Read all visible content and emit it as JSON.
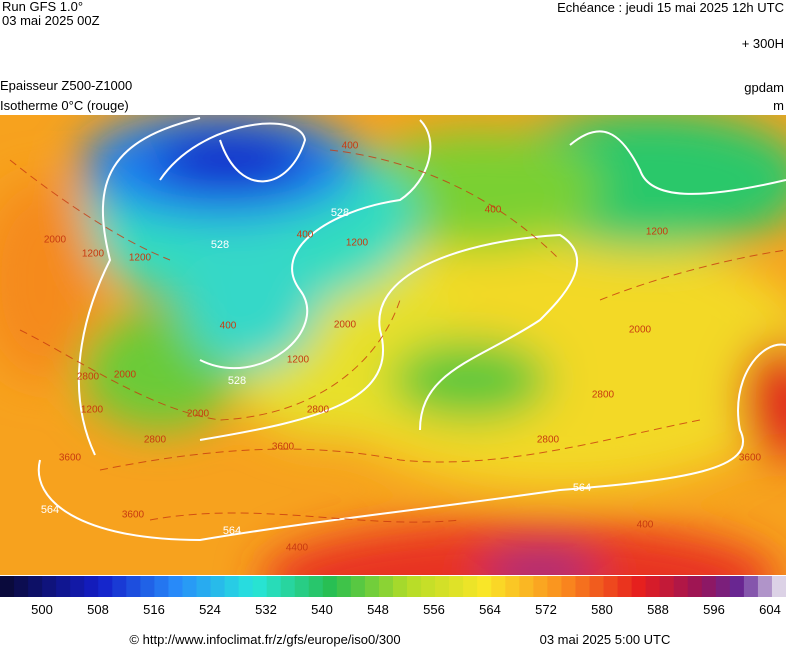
{
  "header": {
    "run": "Run GFS 1.0°",
    "run_date": "03 mai 2025 00Z",
    "valid": "Echéance : jeudi 15 mai 2025 12h UTC",
    "lead": "+ 300H",
    "title1": "Epaisseur Z500-Z1000",
    "title2": "Isotherme 0°C (rouge)",
    "unit1": "gpdam",
    "unit2": "m"
  },
  "contour_labels": {
    "thickness": [
      "528",
      "528",
      "528",
      "564",
      "564",
      "564"
    ],
    "iso0": [
      "400",
      "400",
      "400",
      "400",
      "400",
      "1200",
      "1200",
      "1200",
      "1200",
      "1200",
      "1200",
      "2000",
      "2000",
      "2000",
      "2000",
      "2000",
      "2800",
      "2800",
      "2800",
      "2800",
      "2800",
      "3600",
      "3600",
      "3600",
      "3600",
      "4400"
    ]
  },
  "colorbar": {
    "labels": [
      500,
      508,
      516,
      524,
      532,
      540,
      548,
      556,
      564,
      572,
      580,
      588,
      596,
      604
    ]
  },
  "footer": {
    "credit": "© http://www.infoclimat.fr/z/gfs/europe/iso0/300",
    "date": "03 mai 2025  5:00 UTC"
  }
}
